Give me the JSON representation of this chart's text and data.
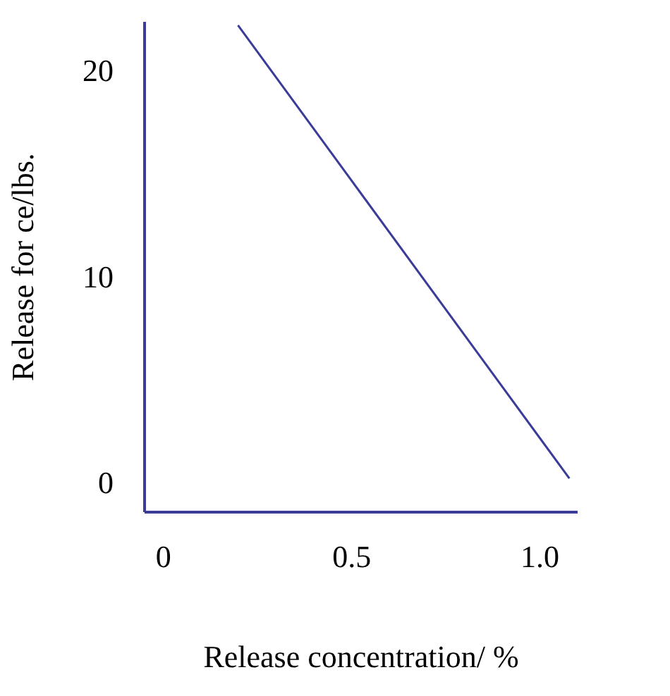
{
  "chart_data": {
    "type": "line",
    "xlabel": "Release concentration/ %",
    "ylabel": "Release for ce/lbs.",
    "x": [
      0.2,
      1.08
    ],
    "series": [
      {
        "color": "#3b3b98",
        "values": [
          22.2,
          0.2
        ]
      }
    ],
    "xlim": [
      -0.05,
      1.1
    ],
    "ylim": [
      -1.4,
      22.4
    ],
    "xticks": [
      0,
      {
        "value": 0.5,
        "label": "0.5"
      },
      {
        "value": 1.0,
        "label": "1.0"
      }
    ],
    "yticks": [
      0,
      10,
      20
    ],
    "grid": false,
    "marker": "none",
    "line_style": "solid"
  }
}
